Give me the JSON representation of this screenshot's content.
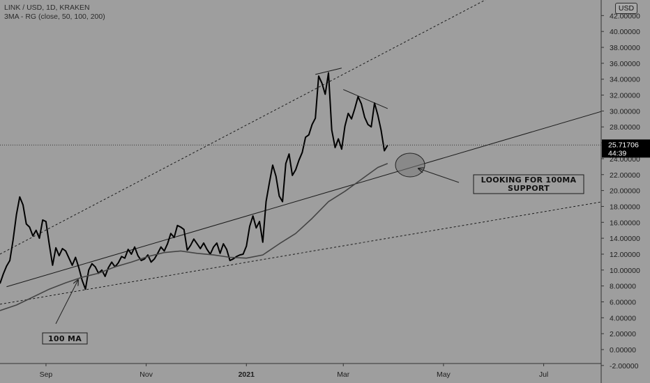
{
  "legend": {
    "symbol_line": "LINK / USD, 1D, KRAKEN",
    "indicator_line": "3MA - RG (close, 50, 100, 200)"
  },
  "currency_button": "USD",
  "price_marker": {
    "price": "25.71706",
    "countdown": "44:39"
  },
  "annotations": {
    "box1_line1": "LOOKING FOR 100MA",
    "box1_line2": "SUPPORT",
    "box2": "100 MA"
  },
  "colors": {
    "background": "#9e9e9e",
    "price": "#000000",
    "ma": "#444444",
    "marker": "#000000"
  },
  "chart_data": {
    "type": "line",
    "title": "LINK / USD, 1D, KRAKEN",
    "ylim": [
      -2.5,
      44.5
    ],
    "y_ticks": [
      -2,
      0,
      2,
      4,
      6,
      8,
      10,
      12,
      14,
      16,
      18,
      20,
      22,
      24,
      26,
      28,
      30,
      32,
      34,
      36,
      38,
      40,
      42
    ],
    "y_tick_labels": [
      "-2.00000",
      "0.00000",
      "2.00000",
      "4.00000",
      "6.00000",
      "8.00000",
      "10.00000",
      "12.00000",
      "14.00000",
      "16.00000",
      "18.00000",
      "20.00000",
      "22.00000",
      "24.00000",
      "26.00000",
      "28.00000",
      "30.00000",
      "32.00000",
      "34.00000",
      "36.00000",
      "38.00000",
      "40.00000",
      "42.00000"
    ],
    "x_labels": [
      "Sep",
      "Nov",
      "2021",
      "Mar",
      "May",
      "Jul"
    ],
    "x_range": [
      "2020-08-04",
      "2021-08-05"
    ],
    "x_label_dates": [
      "2020-09-01",
      "2020-11-01",
      "2021-01-01",
      "2021-03-01",
      "2021-05-01",
      "2021-07-01"
    ],
    "last_price": 25.71706,
    "series": [
      {
        "name": "",
        "role": "price",
        "points": [
          [
            "2020-08-04",
            8.3
          ],
          [
            "2020-08-06",
            9.5
          ],
          [
            "2020-08-08",
            10.5
          ],
          [
            "2020-08-10",
            11.2
          ],
          [
            "2020-08-12",
            13.8
          ],
          [
            "2020-08-14",
            17.0
          ],
          [
            "2020-08-16",
            19.2
          ],
          [
            "2020-08-18",
            18.2
          ],
          [
            "2020-08-20",
            15.8
          ],
          [
            "2020-08-22",
            15.4
          ],
          [
            "2020-08-24",
            14.3
          ],
          [
            "2020-08-26",
            15.0
          ],
          [
            "2020-08-28",
            14.0
          ],
          [
            "2020-08-30",
            16.3
          ],
          [
            "2020-09-01",
            16.1
          ],
          [
            "2020-09-03",
            13.2
          ],
          [
            "2020-09-05",
            10.6
          ],
          [
            "2020-09-07",
            12.8
          ],
          [
            "2020-09-09",
            11.8
          ],
          [
            "2020-09-11",
            12.7
          ],
          [
            "2020-09-13",
            12.4
          ],
          [
            "2020-09-15",
            11.5
          ],
          [
            "2020-09-17",
            10.6
          ],
          [
            "2020-09-19",
            11.6
          ],
          [
            "2020-09-21",
            10.3
          ],
          [
            "2020-09-23",
            8.7
          ],
          [
            "2020-09-25",
            7.6
          ],
          [
            "2020-09-27",
            10.0
          ],
          [
            "2020-09-29",
            10.8
          ],
          [
            "2020-10-01",
            10.4
          ],
          [
            "2020-10-03",
            9.6
          ],
          [
            "2020-10-05",
            10.0
          ],
          [
            "2020-10-07",
            9.2
          ],
          [
            "2020-10-09",
            10.3
          ],
          [
            "2020-10-11",
            11.0
          ],
          [
            "2020-10-13",
            10.4
          ],
          [
            "2020-10-15",
            10.9
          ],
          [
            "2020-10-17",
            11.7
          ],
          [
            "2020-10-19",
            11.5
          ],
          [
            "2020-10-21",
            12.6
          ],
          [
            "2020-10-23",
            12.0
          ],
          [
            "2020-10-25",
            12.9
          ],
          [
            "2020-10-27",
            11.8
          ],
          [
            "2020-10-29",
            11.2
          ],
          [
            "2020-10-31",
            11.4
          ],
          [
            "2020-11-02",
            11.9
          ],
          [
            "2020-11-04",
            11.0
          ],
          [
            "2020-11-06",
            11.4
          ],
          [
            "2020-11-08",
            12.1
          ],
          [
            "2020-11-10",
            12.9
          ],
          [
            "2020-11-12",
            12.4
          ],
          [
            "2020-11-14",
            13.3
          ],
          [
            "2020-11-16",
            14.6
          ],
          [
            "2020-11-18",
            14.1
          ],
          [
            "2020-11-20",
            15.6
          ],
          [
            "2020-11-22",
            15.4
          ],
          [
            "2020-11-24",
            15.1
          ],
          [
            "2020-11-26",
            12.5
          ],
          [
            "2020-11-28",
            13.1
          ],
          [
            "2020-11-30",
            13.9
          ],
          [
            "2020-12-02",
            13.3
          ],
          [
            "2020-12-04",
            12.7
          ],
          [
            "2020-12-06",
            13.4
          ],
          [
            "2020-12-08",
            12.6
          ],
          [
            "2020-12-10",
            12.0
          ],
          [
            "2020-12-12",
            12.9
          ],
          [
            "2020-12-14",
            13.4
          ],
          [
            "2020-12-16",
            12.1
          ],
          [
            "2020-12-18",
            13.3
          ],
          [
            "2020-12-20",
            12.6
          ],
          [
            "2020-12-22",
            11.2
          ],
          [
            "2020-12-24",
            11.4
          ],
          [
            "2020-12-26",
            11.7
          ],
          [
            "2020-12-28",
            11.9
          ],
          [
            "2020-12-30",
            12.0
          ],
          [
            "2021-01-01",
            13.0
          ],
          [
            "2021-01-03",
            15.5
          ],
          [
            "2021-01-05",
            16.8
          ],
          [
            "2021-01-07",
            15.3
          ],
          [
            "2021-01-09",
            16.1
          ],
          [
            "2021-01-11",
            13.5
          ],
          [
            "2021-01-13",
            18.6
          ],
          [
            "2021-01-15",
            21.0
          ],
          [
            "2021-01-17",
            23.2
          ],
          [
            "2021-01-19",
            21.8
          ],
          [
            "2021-01-21",
            19.3
          ],
          [
            "2021-01-23",
            18.6
          ],
          [
            "2021-01-25",
            23.4
          ],
          [
            "2021-01-27",
            24.6
          ],
          [
            "2021-01-29",
            21.9
          ],
          [
            "2021-01-31",
            22.6
          ],
          [
            "2021-02-02",
            23.8
          ],
          [
            "2021-02-04",
            24.8
          ],
          [
            "2021-02-06",
            26.7
          ],
          [
            "2021-02-08",
            27.0
          ],
          [
            "2021-02-10",
            28.3
          ],
          [
            "2021-02-12",
            29.1
          ],
          [
            "2021-02-14",
            34.4
          ],
          [
            "2021-02-16",
            33.5
          ],
          [
            "2021-02-18",
            32.1
          ],
          [
            "2021-02-20",
            34.8
          ],
          [
            "2021-02-22",
            27.6
          ],
          [
            "2021-02-24",
            25.4
          ],
          [
            "2021-02-26",
            26.5
          ],
          [
            "2021-02-28",
            25.2
          ],
          [
            "2021-03-02",
            28.1
          ],
          [
            "2021-03-04",
            29.7
          ],
          [
            "2021-03-06",
            29.0
          ],
          [
            "2021-03-08",
            30.3
          ],
          [
            "2021-03-10",
            31.8
          ],
          [
            "2021-03-12",
            30.9
          ],
          [
            "2021-03-14",
            29.2
          ],
          [
            "2021-03-16",
            28.3
          ],
          [
            "2021-03-18",
            28.0
          ],
          [
            "2021-03-20",
            31.0
          ],
          [
            "2021-03-22",
            29.5
          ],
          [
            "2021-03-24",
            27.6
          ],
          [
            "2021-03-26",
            25.0
          ],
          [
            "2021-03-28",
            25.7
          ]
        ]
      },
      {
        "name": "",
        "role": "100 MA",
        "points": [
          [
            "2020-08-04",
            4.9
          ],
          [
            "2020-08-14",
            5.6
          ],
          [
            "2020-08-24",
            6.6
          ],
          [
            "2020-09-03",
            7.6
          ],
          [
            "2020-09-13",
            8.4
          ],
          [
            "2020-09-23",
            9.1
          ],
          [
            "2020-10-03",
            9.6
          ],
          [
            "2020-10-13",
            10.4
          ],
          [
            "2020-10-23",
            11.0
          ],
          [
            "2020-11-02",
            11.7
          ],
          [
            "2020-11-12",
            12.2
          ],
          [
            "2020-11-22",
            12.4
          ],
          [
            "2020-12-02",
            12.1
          ],
          [
            "2020-12-12",
            11.9
          ],
          [
            "2020-12-22",
            11.6
          ],
          [
            "2021-01-01",
            11.5
          ],
          [
            "2021-01-11",
            11.9
          ],
          [
            "2021-01-21",
            13.3
          ],
          [
            "2021-01-31",
            14.6
          ],
          [
            "2021-02-10",
            16.5
          ],
          [
            "2021-02-20",
            18.6
          ],
          [
            "2021-03-02",
            19.9
          ],
          [
            "2021-03-12",
            21.4
          ],
          [
            "2021-03-22",
            22.9
          ],
          [
            "2021-03-28",
            23.4
          ]
        ]
      }
    ],
    "trendlines": [
      {
        "style": "solid",
        "from": [
          "2020-08-08",
          7.9
        ],
        "to": [
          "2021-08-06",
          30.0
        ]
      },
      {
        "style": "dashed",
        "from": [
          "2020-08-04",
          5.7
        ],
        "to": [
          "2021-08-06",
          18.6
        ]
      },
      {
        "style": "dashed",
        "from": [
          "2020-08-04",
          12.0
        ],
        "to": [
          "2021-06-05",
          45.0
        ]
      },
      {
        "style": "solid",
        "from": [
          "2021-02-12",
          34.6
        ],
        "to": [
          "2021-02-28",
          35.4
        ]
      },
      {
        "style": "solid",
        "from": [
          "2021-03-01",
          32.7
        ],
        "to": [
          "2021-03-28",
          30.3
        ]
      }
    ],
    "grid": false,
    "legend_position": "top-left"
  }
}
